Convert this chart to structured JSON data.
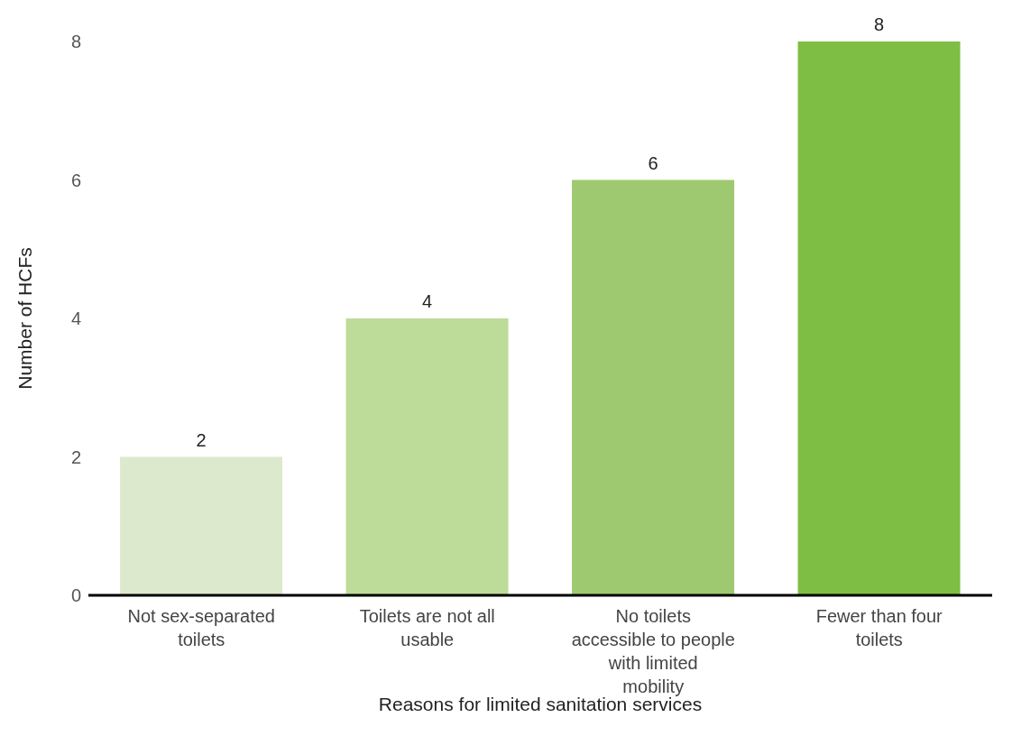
{
  "chart_data": {
    "type": "bar",
    "xlabel": "Reasons for limited sanitation services",
    "ylabel": "Number of HCFs",
    "categories": [
      "Not sex-separated toilets",
      "Toilets are not all usable",
      "No toilets accessible to people with limited mobility",
      "Fewer than four toilets"
    ],
    "values": [
      2,
      4,
      6,
      8
    ],
    "colors": [
      "#dde9cc",
      "#bddb99",
      "#9fc970",
      "#7fbe44"
    ],
    "ylim": [
      0,
      8
    ],
    "yticks": [
      0,
      2,
      4,
      6,
      8
    ],
    "grid": false,
    "legend": false,
    "data_labels": true
  }
}
